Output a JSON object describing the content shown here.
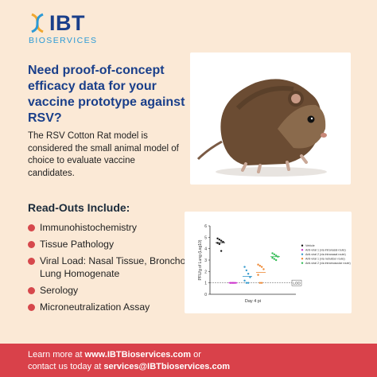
{
  "brand": {
    "name": "IBT",
    "subname": "BIOSERVICES",
    "primary_color": "#1a3f8a",
    "accent_color": "#d9414a",
    "light_blue": "#2c9ad6"
  },
  "headline": "Need proof-of-concept efficacy data for your vaccine prototype against RSV?",
  "body": "The RSV Cotton Rat model is considered the small animal model of choice to evaluate vaccine candidates.",
  "photo": {
    "subject": "cotton rat"
  },
  "readouts": {
    "title": "Read-Outs Include:",
    "items": [
      "Immunohistochemistry",
      "Tissue Pathology",
      "Viral Load: Nasal Tissue, Bronchoalveolar Fluid, Lung Homogenate",
      "Serology",
      "Microneutralization Assay"
    ]
  },
  "footer": {
    "line1_prefix": "Learn more at ",
    "line1_link": "www.IBTBioservices.com",
    "line1_suffix": " or",
    "line2_prefix": "contact us today at ",
    "line2_link": "services@IBTbioservices.com"
  },
  "chart_data": {
    "type": "scatter",
    "ylabel": "PFU/g of Lung (Log10)",
    "xlabel": "Day 4 pi",
    "ylim": [
      0,
      6
    ],
    "yticks": [
      "0",
      "1",
      "2",
      "3",
      "4",
      "5",
      "6"
    ],
    "lod_label": "LOD",
    "lod_value": 1,
    "series": [
      {
        "name": "Vehicle",
        "color": "#111111",
        "values": [
          4.9,
          4.8,
          4.7,
          4.6,
          4.5,
          4.4,
          3.8
        ]
      },
      {
        "name": "Anti-viral 1 (via intranasal route)",
        "color": "#cc33cc",
        "values": [
          1.0,
          1.0,
          1.0,
          1.0,
          1.0,
          1.0,
          1.0
        ]
      },
      {
        "name": "Anti-viral 2 (via intranasal route)",
        "color": "#3399cc",
        "values": [
          2.4,
          2.1,
          1.8,
          1.5,
          1.2,
          1.0,
          1.0
        ]
      },
      {
        "name": "Anti-viral 1 (via nebulizer route)",
        "color": "#ee8833",
        "values": [
          2.6,
          2.5,
          2.4,
          2.2,
          1.7,
          1.0,
          1.0
        ]
      },
      {
        "name": "Anti-viral 2 (via intramuscular route)",
        "color": "#33bb55",
        "values": [
          3.6,
          3.5,
          3.4,
          3.3,
          3.2,
          3.1,
          3.0
        ]
      }
    ]
  }
}
